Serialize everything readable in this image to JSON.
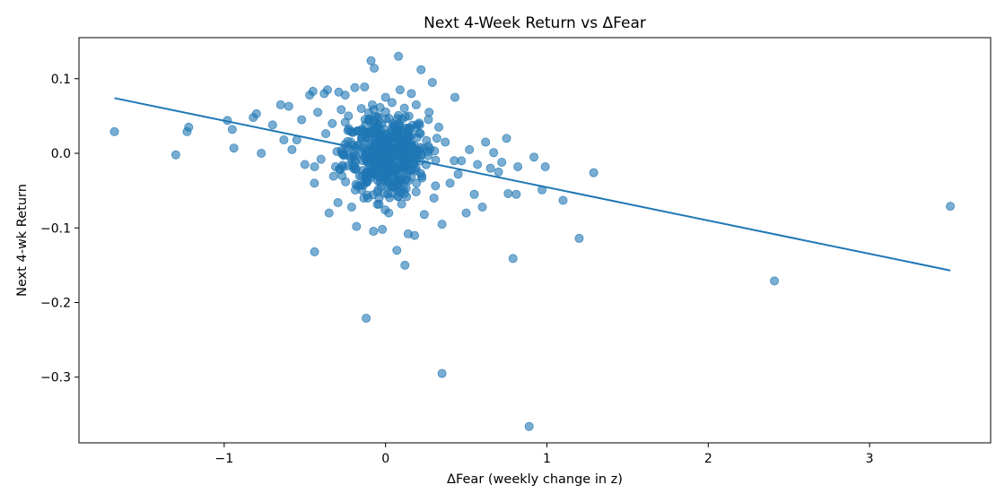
{
  "chart_data": {
    "type": "scatter",
    "title": "Next 4-Week Return vs ΔFear",
    "xlabel": "ΔFear (weekly change in z)",
    "ylabel": "Next 4-wk Return",
    "xlim": [
      -1.9,
      3.75
    ],
    "ylim": [
      -0.388,
      0.155
    ],
    "xticks": [
      -1,
      0,
      1,
      2,
      3
    ],
    "xtick_labels": [
      "−1",
      "0",
      "1",
      "2",
      "3"
    ],
    "yticks": [
      0.1,
      0.0,
      -0.1,
      -0.2,
      -0.3
    ],
    "ytick_labels": [
      "0.1",
      "0.0",
      "−0.1",
      "−0.2",
      "−0.3"
    ],
    "grid": false,
    "colors": {
      "points": "#1f77b4",
      "line": "#1f77b4"
    },
    "trend_line": {
      "x": [
        -1.68,
        3.5
      ],
      "y": [
        0.074,
        -0.157
      ]
    },
    "points": [
      {
        "x": -1.68,
        "y": 0.029
      },
      {
        "x": -1.3,
        "y": -0.002
      },
      {
        "x": -1.22,
        "y": 0.035
      },
      {
        "x": -1.23,
        "y": 0.029
      },
      {
        "x": -0.98,
        "y": 0.044
      },
      {
        "x": -0.95,
        "y": 0.032
      },
      {
        "x": -0.94,
        "y": 0.007
      },
      {
        "x": -0.82,
        "y": 0.048
      },
      {
        "x": -0.8,
        "y": 0.053
      },
      {
        "x": -0.77,
        "y": 0.0
      },
      {
        "x": -0.7,
        "y": 0.038
      },
      {
        "x": -0.65,
        "y": 0.065
      },
      {
        "x": -0.63,
        "y": 0.018
      },
      {
        "x": -0.6,
        "y": 0.063
      },
      {
        "x": -0.58,
        "y": 0.005
      },
      {
        "x": -0.55,
        "y": 0.018
      },
      {
        "x": -0.52,
        "y": 0.045
      },
      {
        "x": -0.5,
        "y": -0.015
      },
      {
        "x": -0.47,
        "y": 0.078
      },
      {
        "x": -0.45,
        "y": 0.083
      },
      {
        "x": -0.44,
        "y": -0.018
      },
      {
        "x": -0.42,
        "y": 0.055
      },
      {
        "x": -0.4,
        "y": -0.008
      },
      {
        "x": -0.38,
        "y": 0.08
      },
      {
        "x": -0.36,
        "y": 0.085
      },
      {
        "x": -0.35,
        "y": -0.08
      },
      {
        "x": -0.33,
        "y": 0.04
      },
      {
        "x": -0.31,
        "y": -0.018
      },
      {
        "x": -0.29,
        "y": 0.082
      },
      {
        "x": -0.27,
        "y": -0.03
      },
      {
        "x": -0.25,
        "y": 0.078
      },
      {
        "x": -0.23,
        "y": 0.05
      },
      {
        "x": -0.21,
        "y": -0.072
      },
      {
        "x": -0.19,
        "y": 0.088
      },
      {
        "x": -0.18,
        "y": -0.098
      },
      {
        "x": -0.15,
        "y": 0.06
      },
      {
        "x": -0.13,
        "y": 0.089
      },
      {
        "x": -0.11,
        "y": -0.06
      },
      {
        "x": -0.09,
        "y": 0.124
      },
      {
        "x": -0.07,
        "y": 0.114
      },
      {
        "x": -0.05,
        "y": 0.048
      },
      {
        "x": -0.04,
        "y": -0.06
      },
      {
        "x": -0.02,
        "y": -0.102
      },
      {
        "x": 0.0,
        "y": 0.075
      },
      {
        "x": 0.02,
        "y": -0.08
      },
      {
        "x": 0.04,
        "y": 0.068
      },
      {
        "x": 0.07,
        "y": -0.13
      },
      {
        "x": 0.08,
        "y": 0.13
      },
      {
        "x": 0.09,
        "y": 0.085
      },
      {
        "x": 0.1,
        "y": -0.068
      },
      {
        "x": 0.12,
        "y": -0.15
      },
      {
        "x": 0.14,
        "y": -0.108
      },
      {
        "x": 0.16,
        "y": 0.08
      },
      {
        "x": 0.18,
        "y": -0.11
      },
      {
        "x": 0.19,
        "y": 0.065
      },
      {
        "x": 0.22,
        "y": 0.112
      },
      {
        "x": 0.24,
        "y": -0.082
      },
      {
        "x": 0.27,
        "y": 0.055
      },
      {
        "x": 0.29,
        "y": 0.095
      },
      {
        "x": 0.3,
        "y": -0.06
      },
      {
        "x": 0.33,
        "y": 0.035
      },
      {
        "x": 0.35,
        "y": -0.095
      },
      {
        "x": 0.37,
        "y": 0.015
      },
      {
        "x": 0.4,
        "y": -0.04
      },
      {
        "x": 0.43,
        "y": 0.075
      },
      {
        "x": 0.45,
        "y": -0.028
      },
      {
        "x": 0.47,
        "y": -0.01
      },
      {
        "x": 0.5,
        "y": -0.08
      },
      {
        "x": 0.52,
        "y": 0.005
      },
      {
        "x": 0.55,
        "y": -0.055
      },
      {
        "x": 0.57,
        "y": -0.015
      },
      {
        "x": 0.6,
        "y": -0.072
      },
      {
        "x": 0.62,
        "y": 0.015
      },
      {
        "x": 0.65,
        "y": -0.02
      },
      {
        "x": 0.67,
        "y": 0.001
      },
      {
        "x": 0.7,
        "y": -0.025
      },
      {
        "x": 0.72,
        "y": -0.012
      },
      {
        "x": 0.75,
        "y": 0.02
      },
      {
        "x": 0.76,
        "y": -0.054
      },
      {
        "x": 0.79,
        "y": -0.141
      },
      {
        "x": 0.81,
        "y": -0.055
      },
      {
        "x": 0.82,
        "y": -0.018
      },
      {
        "x": 0.92,
        "y": -0.005
      },
      {
        "x": 0.97,
        "y": -0.049
      },
      {
        "x": 0.99,
        "y": -0.018
      },
      {
        "x": 1.1,
        "y": -0.063
      },
      {
        "x": 1.2,
        "y": -0.114
      },
      {
        "x": 1.29,
        "y": -0.026
      },
      {
        "x": 2.41,
        "y": -0.171
      },
      {
        "x": 3.5,
        "y": -0.071
      },
      {
        "x": -0.44,
        "y": -0.132
      },
      {
        "x": -0.12,
        "y": -0.221
      },
      {
        "x": 0.35,
        "y": -0.295
      },
      {
        "x": 0.89,
        "y": -0.366
      }
    ]
  }
}
